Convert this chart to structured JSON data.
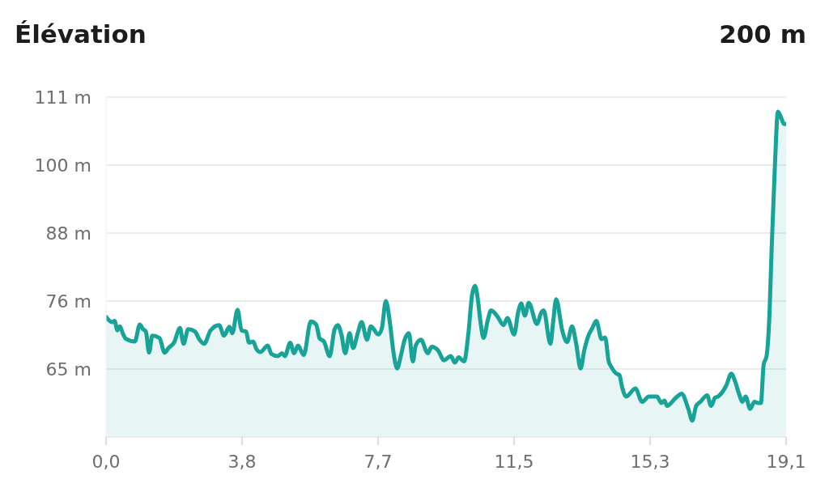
{
  "chart_data": {
    "type": "area",
    "title": "Élévation",
    "subtitle": "200 m",
    "x": [
      0,
      0.17,
      0.24,
      0.32,
      0.39,
      0.47,
      0.55,
      0.81,
      0.95,
      1.04,
      1.12,
      1.21,
      1.3,
      1.5,
      1.65,
      1.76,
      1.91,
      2.08,
      2.18,
      2.31,
      2.5,
      2.63,
      2.76,
      2.94,
      3.18,
      3.32,
      3.47,
      3.55,
      3.7,
      3.81,
      3.94,
      4.02,
      4.14,
      4.23,
      4.34,
      4.55,
      4.65,
      4.83,
      4.95,
      5.03,
      5.18,
      5.29,
      5.4,
      5.56,
      5.76,
      5.91,
      6.01,
      6.13,
      6.29,
      6.43,
      6.52,
      6.62,
      6.73,
      6.85,
      6.95,
      7.08,
      7.19,
      7.34,
      7.45,
      7.66,
      7.76,
      7.87,
      7.99,
      8.08,
      8.19,
      8.29,
      8.4,
      8.52,
      8.63,
      8.71,
      8.86,
      9.05,
      9.16,
      9.35,
      9.5,
      9.7,
      9.81,
      9.92,
      10.07,
      10.19,
      10.3,
      10.38,
      10.45,
      10.53,
      10.62,
      10.74,
      10.83,
      11.02,
      11.18,
      11.29,
      11.48,
      11.59,
      11.68,
      11.78,
      11.89,
      12.12,
      12.24,
      12.31,
      12.5,
      12.58,
      12.66,
      12.84,
      12.97,
      13.11,
      13.22,
      13.35,
      13.45,
      13.57,
      13.68,
      13.79,
      13.94,
      14.04,
      14.14,
      14.21,
      14.36,
      14.44,
      14.51,
      14.63,
      14.89,
      15.08,
      15.27,
      15.5,
      15.62,
      15.71,
      15.78,
      16.03,
      16.19,
      16.38,
      16.49,
      16.6,
      16.72,
      16.91,
      17.02,
      17.13,
      17.21,
      17.44,
      17.59,
      17.7,
      17.82,
      17.9,
      17.99,
      18.12,
      18.24,
      18.35,
      18.42,
      18.5,
      18.58,
      18.65,
      18.73,
      18.82,
      18.9,
      18.99,
      19.07,
      19.13
    ],
    "values": [
      73.6,
      72.7,
      72.9,
      71.3,
      72.0,
      70.8,
      69.9,
      69.4,
      72.3,
      71.5,
      71.1,
      67.5,
      70.4,
      70.0,
      67.5,
      68.3,
      69.2,
      71.7,
      69.0,
      71.5,
      71.1,
      69.7,
      69.0,
      71.3,
      72.2,
      70.4,
      71.9,
      70.8,
      74.8,
      71.3,
      71.1,
      69.2,
      69.4,
      68.1,
      67.6,
      68.7,
      67.3,
      66.9,
      67.4,
      66.9,
      69.2,
      67.4,
      68.7,
      67.1,
      72.8,
      72.3,
      69.9,
      69.4,
      66.9,
      71.5,
      72.2,
      70.6,
      67.4,
      70.8,
      68.3,
      70.8,
      72.7,
      69.7,
      72.0,
      70.6,
      71.7,
      76.3,
      72.4,
      67.8,
      64.8,
      66.9,
      69.7,
      70.8,
      66.0,
      68.7,
      69.7,
      67.4,
      68.5,
      67.8,
      66.2,
      66.9,
      65.8,
      66.7,
      66.0,
      70.6,
      77.5,
      78.9,
      77.0,
      72.9,
      70.0,
      73.1,
      74.7,
      73.6,
      72.2,
      73.4,
      70.6,
      74.3,
      75.9,
      73.8,
      76.0,
      72.4,
      74.3,
      74.7,
      69.0,
      72.9,
      76.6,
      71.1,
      69.3,
      72.0,
      69.2,
      64.8,
      67.8,
      70.4,
      71.7,
      72.9,
      69.8,
      70.1,
      66.0,
      65.1,
      63.9,
      63.7,
      61.8,
      60.0,
      61.4,
      59.1,
      60.0,
      60.0,
      58.9,
      59.3,
      58.4,
      59.8,
      60.5,
      57.9,
      55.9,
      58.4,
      59.1,
      60.2,
      58.4,
      59.8,
      60.0,
      61.8,
      63.9,
      62.5,
      60.2,
      59.1,
      60.0,
      57.9,
      59.1,
      58.9,
      58.9,
      65.5,
      66.9,
      72.4,
      86.2,
      100.1,
      108.6,
      107.6,
      106.5,
      106.5
    ],
    "color": "#17a398",
    "xlim": [
      0,
      19.13
    ],
    "xticks": [
      {
        "value": 0,
        "label": "0,0"
      },
      {
        "value": 3.826,
        "label": "3,8"
      },
      {
        "value": 7.652,
        "label": "7,7"
      },
      {
        "value": 11.478,
        "label": "11,5"
      },
      {
        "value": 15.304,
        "label": "15,3"
      },
      {
        "value": 19.13,
        "label": "19,1"
      }
    ],
    "ylim": [
      53.1,
      111.1
    ],
    "yticks": [
      {
        "value": 64.7,
        "label": "65 m"
      },
      {
        "value": 76.3,
        "label": "76 m"
      },
      {
        "value": 87.9,
        "label": "88 m"
      },
      {
        "value": 99.5,
        "label": "100 m"
      },
      {
        "value": 111.1,
        "label": "111 m"
      }
    ],
    "grid": "y"
  }
}
